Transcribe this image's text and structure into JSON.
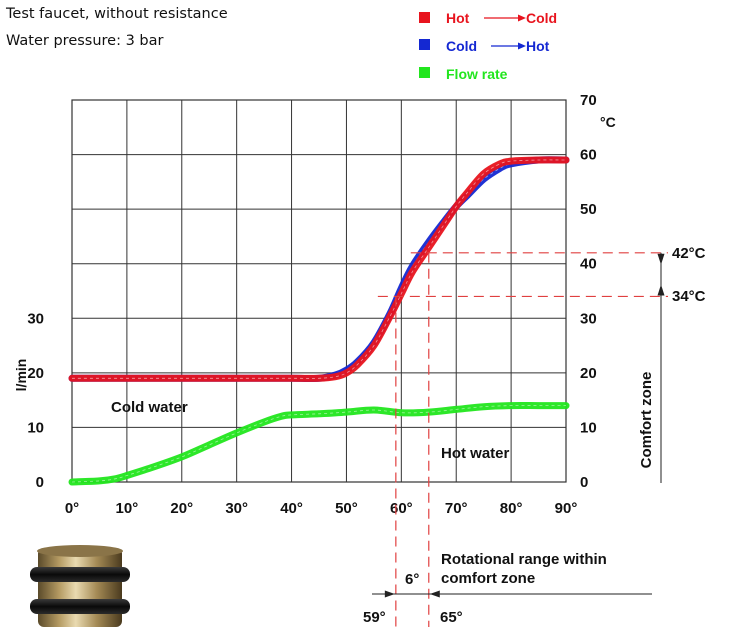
{
  "header": {
    "line1": "Test faucet, without resistance",
    "line2": "Water pressure: 3 bar"
  },
  "legend": {
    "items": [
      {
        "from": "Hot",
        "to": "Cold",
        "color": "#e8141e"
      },
      {
        "from": "Cold",
        "to": "Hot",
        "color": "#1428d2"
      },
      {
        "label": "Flow rate",
        "color": "#22e61e"
      }
    ]
  },
  "chart_data": {
    "type": "line",
    "xlabel": "",
    "ylabel_left": "l/min",
    "ylabel_right": "°C",
    "x_ticks": [
      "0°",
      "10°",
      "20°",
      "30°",
      "40°",
      "50°",
      "60°",
      "70°",
      "80°",
      "90°"
    ],
    "x_range": [
      0,
      90
    ],
    "y_left_ticks": [
      "0",
      "10",
      "20",
      "30"
    ],
    "y_left_range": [
      0,
      70
    ],
    "y_right_ticks": [
      "0",
      "10",
      "20",
      "30",
      "40",
      "50",
      "60",
      "70"
    ],
    "y_right_range": [
      0,
      70
    ],
    "grid": true,
    "series": [
      {
        "name": "Hot → Cold",
        "color": "#e8141e",
        "x": [
          0,
          10,
          20,
          30,
          40,
          45,
          48,
          50,
          52,
          55,
          58,
          60,
          62,
          65,
          68,
          70,
          72,
          75,
          78,
          80,
          85,
          90
        ],
        "y": [
          19,
          19,
          19,
          19,
          19,
          19,
          19.3,
          20,
          21.5,
          25,
          30.5,
          34.5,
          38.5,
          43,
          47.5,
          50.5,
          53,
          56.5,
          58.3,
          58.8,
          59,
          59
        ]
      },
      {
        "name": "Cold → Hot",
        "color": "#1428d2",
        "x": [
          0,
          10,
          20,
          30,
          40,
          45,
          48,
          50,
          52,
          55,
          58,
          60,
          62,
          65,
          68,
          70,
          72,
          75,
          78,
          80,
          85,
          90
        ],
        "y": [
          19,
          19,
          19,
          19,
          19,
          19,
          19.6,
          20.5,
          22,
          25.5,
          31,
          35.5,
          39.5,
          44,
          48,
          50.5,
          52.5,
          55.5,
          57.5,
          58.3,
          59,
          59
        ]
      },
      {
        "name": "Flow rate",
        "color": "#22e61e",
        "x": [
          0,
          5,
          8,
          10,
          15,
          20,
          25,
          30,
          35,
          38,
          40,
          45,
          50,
          55,
          60,
          65,
          70,
          75,
          80,
          85,
          90
        ],
        "y": [
          0,
          0.2,
          0.6,
          1.2,
          2.8,
          4.6,
          6.8,
          9,
          11,
          12,
          12.3,
          12.5,
          12.8,
          13.2,
          12.7,
          12.8,
          13.3,
          13.8,
          14,
          14,
          14
        ]
      }
    ],
    "annotations": {
      "cold_water": "Cold water",
      "hot_water": "Hot water",
      "comfort_zone": "Comfort zone",
      "temp_high": "42°C",
      "temp_low": "34°C",
      "temp_high_value": 42,
      "temp_low_value": 34,
      "angle_low_value": 59,
      "angle_high_value": 65,
      "angle_low": "59°",
      "angle_high": "65°",
      "angle_span": "6°",
      "rotational_range_line1": "Rotational range within",
      "rotational_range_line2": "comfort zone"
    }
  }
}
